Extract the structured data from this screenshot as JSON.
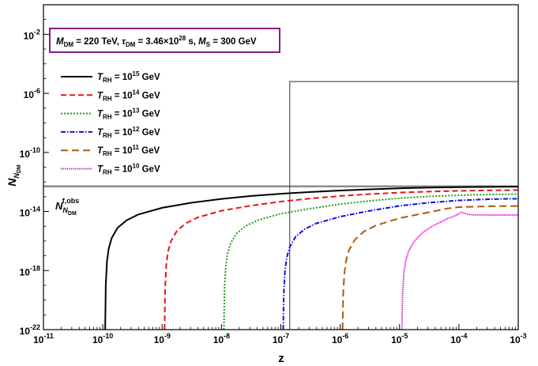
{
  "chart_data": {
    "type": "line",
    "title": "",
    "xlabel": "z",
    "ylabel": "N_{N_DM}",
    "xscale": "log",
    "yscale": "log",
    "xlim_exp": [
      -11,
      -3
    ],
    "ylim_exp": [
      -22,
      0
    ],
    "x_ticks": [
      {
        "exp": -11,
        "label": "10"
      },
      {
        "exp": -10,
        "label": "10"
      },
      {
        "exp": -9,
        "label": "10"
      },
      {
        "exp": -8,
        "label": "10"
      },
      {
        "exp": -7,
        "label": "10"
      },
      {
        "exp": -6,
        "label": "10"
      },
      {
        "exp": -5,
        "label": "10"
      },
      {
        "exp": -4,
        "label": "10"
      },
      {
        "exp": -3,
        "label": "10"
      }
    ],
    "y_ticks": [
      {
        "exp": -22,
        "label": "10"
      },
      {
        "exp": -18,
        "label": "10"
      },
      {
        "exp": -14,
        "label": "10"
      },
      {
        "exp": -10,
        "label": "10"
      },
      {
        "exp": -6,
        "label": "10"
      },
      {
        "exp": -2,
        "label": "10"
      }
    ],
    "parameter_box": {
      "m_label": "M",
      "m_sub": "DM",
      "m_value": " = 220 TeV,  ",
      "tau_label": "τ",
      "tau_sub": "DM",
      "tau_value": " = 3.46×10",
      "tau_exp": "28",
      "tau_unit": " s,  ",
      "ms_label": "M",
      "ms_sub": "S",
      "ms_value": " = 300 GeV"
    },
    "observed_label": {
      "main": "N",
      "sub": "N",
      "subsub": "DM",
      "sup": "f,obs"
    },
    "observed_log10": -12.3,
    "box_region": {
      "x_start_exp": -6.85,
      "y_top_exp": -5.2
    },
    "legend_position": "upper-left",
    "series": [
      {
        "name": "T",
        "sub": "RH",
        "eq": " = 10",
        "exp": "15",
        "unit": " GeV",
        "color": "#000000",
        "dash": "",
        "width": 2,
        "log10_x": [
          -9.96,
          -9.95,
          -9.93,
          -9.9,
          -9.85,
          -9.75,
          -9.6,
          -9.4,
          -9.0,
          -8.5,
          -8.0,
          -7.5,
          -7.0,
          -6.5,
          -6.0,
          -5.5,
          -5.0,
          -4.5,
          -4.0,
          -3.5,
          -3.0
        ],
        "log10_y": [
          -22,
          -19.0,
          -17.4,
          -16.5,
          -15.8,
          -15.1,
          -14.6,
          -14.2,
          -13.75,
          -13.4,
          -13.15,
          -12.95,
          -12.8,
          -12.68,
          -12.58,
          -12.5,
          -12.43,
          -12.38,
          -12.35,
          -12.33,
          -12.32
        ]
      },
      {
        "name": "T",
        "sub": "RH",
        "eq": " = 10",
        "exp": "14",
        "unit": " GeV",
        "color": "#e8141c",
        "dash": "7,4",
        "width": 2,
        "log10_x": [
          -8.96,
          -8.95,
          -8.93,
          -8.9,
          -8.85,
          -8.75,
          -8.6,
          -8.4,
          -8.0,
          -7.5,
          -7.0,
          -6.5,
          -6.0,
          -5.5,
          -5.0,
          -4.5,
          -4.0,
          -3.5,
          -3.0
        ],
        "log10_y": [
          -22,
          -19.2,
          -17.6,
          -16.7,
          -16.0,
          -15.3,
          -14.8,
          -14.4,
          -13.95,
          -13.6,
          -13.33,
          -13.12,
          -12.95,
          -12.82,
          -12.72,
          -12.65,
          -12.6,
          -12.57,
          -12.55
        ]
      },
      {
        "name": "T",
        "sub": "RH",
        "eq": " = 10",
        "exp": "13",
        "unit": " GeV",
        "color": "#1a9e1a",
        "dash": "2,2",
        "width": 2,
        "log10_x": [
          -7.96,
          -7.95,
          -7.93,
          -7.9,
          -7.85,
          -7.75,
          -7.6,
          -7.4,
          -7.0,
          -6.5,
          -6.0,
          -5.5,
          -5.0,
          -4.5,
          -4.0,
          -3.5,
          -3.0
        ],
        "log10_y": [
          -22,
          -19.3,
          -17.8,
          -16.9,
          -16.2,
          -15.5,
          -15.0,
          -14.6,
          -14.15,
          -13.8,
          -13.5,
          -13.28,
          -13.1,
          -12.98,
          -12.9,
          -12.85,
          -12.82
        ]
      },
      {
        "name": "T",
        "sub": "RH",
        "eq": " = 10",
        "exp": "12",
        "unit": " GeV",
        "color": "#1010e0",
        "dash": "6,2,1.5,2",
        "width": 2,
        "log10_x": [
          -6.96,
          -6.95,
          -6.93,
          -6.9,
          -6.85,
          -6.75,
          -6.6,
          -6.4,
          -6.0,
          -5.5,
          -5.0,
          -4.5,
          -4.0,
          -3.5,
          -3.0
        ],
        "log10_y": [
          -22,
          -19.5,
          -18.0,
          -17.1,
          -16.4,
          -15.7,
          -15.2,
          -14.8,
          -14.35,
          -13.95,
          -13.62,
          -13.4,
          -13.25,
          -13.17,
          -13.13
        ]
      },
      {
        "name": "T",
        "sub": "RH",
        "eq": " = 10",
        "exp": "11",
        "unit": " GeV",
        "color": "#b05a10",
        "dash": "9,5",
        "width": 2,
        "log10_x": [
          -5.96,
          -5.95,
          -5.93,
          -5.9,
          -5.85,
          -5.75,
          -5.6,
          -5.4,
          -5.0,
          -4.5,
          -4.2,
          -4.0,
          -3.7,
          -3.4,
          -3.0
        ],
        "log10_y": [
          -22,
          -19.6,
          -18.2,
          -17.3,
          -16.6,
          -15.9,
          -15.35,
          -14.95,
          -14.45,
          -14.05,
          -13.8,
          -13.7,
          -13.67,
          -13.64,
          -13.63
        ]
      },
      {
        "name": "T",
        "sub": "RH",
        "eq": " = 10",
        "exp": "10",
        "unit": " GeV",
        "color": "#e820e8",
        "dash": "1.5,1",
        "width": 2,
        "log10_x": [
          -4.96,
          -4.95,
          -4.93,
          -4.9,
          -4.85,
          -4.75,
          -4.6,
          -4.45,
          -4.3,
          -4.2,
          -4.1,
          -4.0,
          -3.95,
          -3.9,
          -3.85,
          -3.75,
          -3.6,
          -3.4,
          -3.0
        ],
        "log10_y": [
          -22,
          -19.7,
          -18.3,
          -17.4,
          -16.7,
          -16.0,
          -15.4,
          -15.0,
          -14.7,
          -14.5,
          -14.35,
          -14.15,
          -14.05,
          -14.12,
          -14.2,
          -14.23,
          -14.23,
          -14.24,
          -14.24
        ]
      }
    ]
  }
}
